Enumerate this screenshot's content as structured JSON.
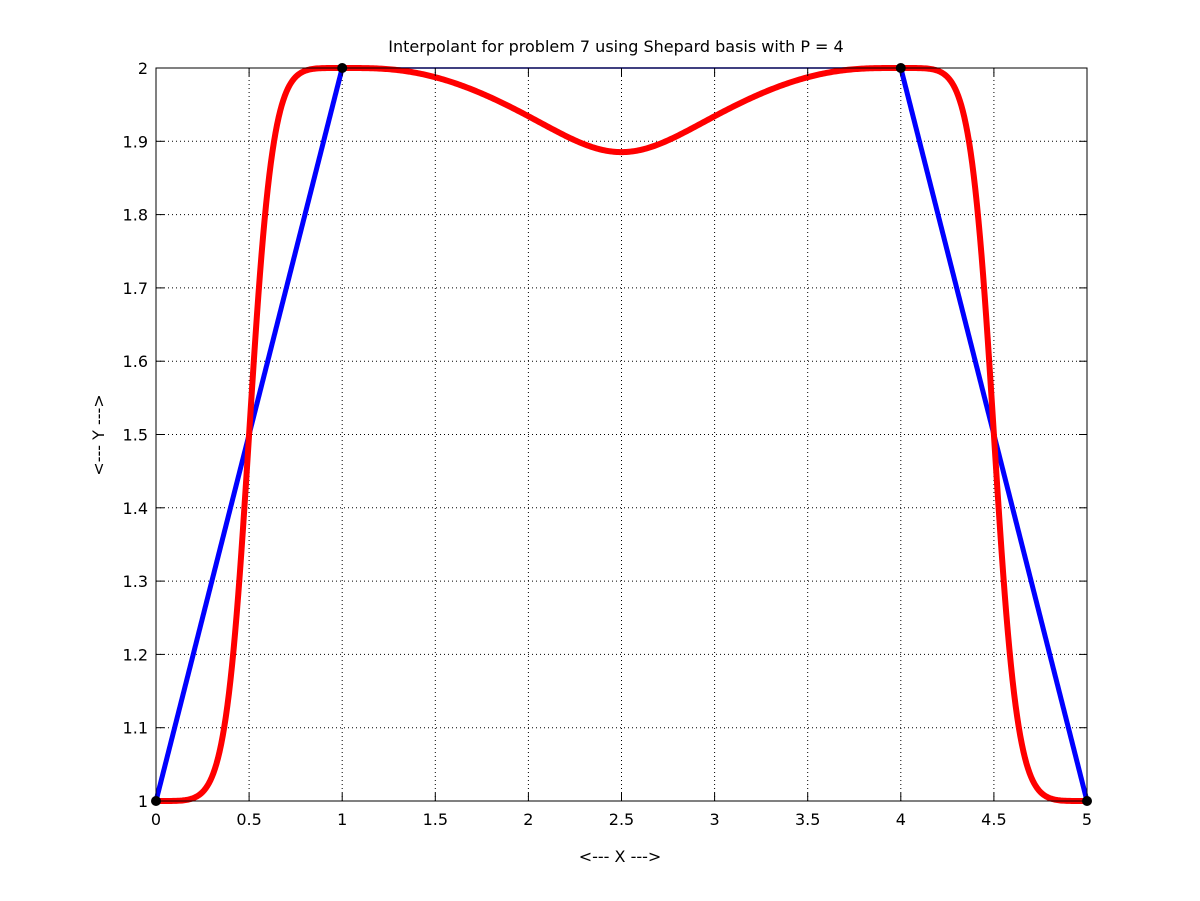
{
  "chart_data": {
    "type": "line",
    "title": "Interpolant for problem 7 using Shepard basis with P = 4",
    "xlabel": "<--- X --->",
    "ylabel": "<--- Y --->",
    "xlim": [
      0,
      5
    ],
    "ylim": [
      1,
      2
    ],
    "xticks": [
      0,
      0.5,
      1,
      1.5,
      2,
      2.5,
      3,
      3.5,
      4,
      4.5,
      5
    ],
    "xtick_labels": [
      "0",
      "0.5",
      "1",
      "1.5",
      "2",
      "2.5",
      "3",
      "3.5",
      "4",
      "4.5",
      "5"
    ],
    "yticks": [
      1,
      1.1,
      1.2,
      1.3,
      1.4,
      1.5,
      1.6,
      1.7,
      1.8,
      1.9,
      2
    ],
    "ytick_labels": [
      "1",
      "1.1",
      "1.2",
      "1.3",
      "1.4",
      "1.5",
      "1.6",
      "1.7",
      "1.8",
      "1.9",
      "2"
    ],
    "grid": true,
    "grid_style": "dotted",
    "series": [
      {
        "kind": "piecewise-linear",
        "color": "#0000ff",
        "x": [
          0,
          1,
          4,
          5
        ],
        "y": [
          1,
          2,
          2,
          1
        ]
      },
      {
        "kind": "shepard-interpolant",
        "color": "#ff0000",
        "x": [
          0,
          0.1,
          0.2,
          0.25,
          0.3,
          0.35,
          0.4,
          0.45,
          0.5,
          0.55,
          0.6,
          0.65,
          0.7,
          0.75,
          0.8,
          0.9,
          1,
          1.25,
          1.5,
          1.75,
          2,
          2.25,
          2.5,
          2.75,
          3,
          3.25,
          3.5,
          3.75,
          4,
          4.1,
          4.2,
          4.25,
          4.3,
          4.35,
          4.4,
          4.45,
          4.5,
          4.55,
          4.6,
          4.65,
          4.7,
          4.75,
          4.8,
          4.9,
          5
        ],
        "y": [
          1,
          1.0001,
          1.0025,
          1.0077,
          1.0187,
          1.0383,
          1.0683,
          1.1086,
          1.5,
          1.8914,
          1.9317,
          1.9617,
          1.9813,
          1.9923,
          1.9975,
          1.9999,
          2,
          1.9967,
          1.9792,
          1.9478,
          1.9132,
          1.8906,
          1.8846,
          1.8906,
          1.9132,
          1.9478,
          1.9792,
          1.9967,
          2,
          1.9999,
          1.9975,
          1.9923,
          1.9813,
          1.9617,
          1.9317,
          1.8914,
          1.5,
          1.1086,
          1.0683,
          1.0383,
          1.0187,
          1.0077,
          1.0025,
          1.0001,
          1
        ]
      },
      {
        "kind": "data-points",
        "color": "#000000",
        "x": [
          0,
          1,
          4,
          5
        ],
        "y": [
          1,
          2,
          2,
          1
        ]
      }
    ]
  }
}
